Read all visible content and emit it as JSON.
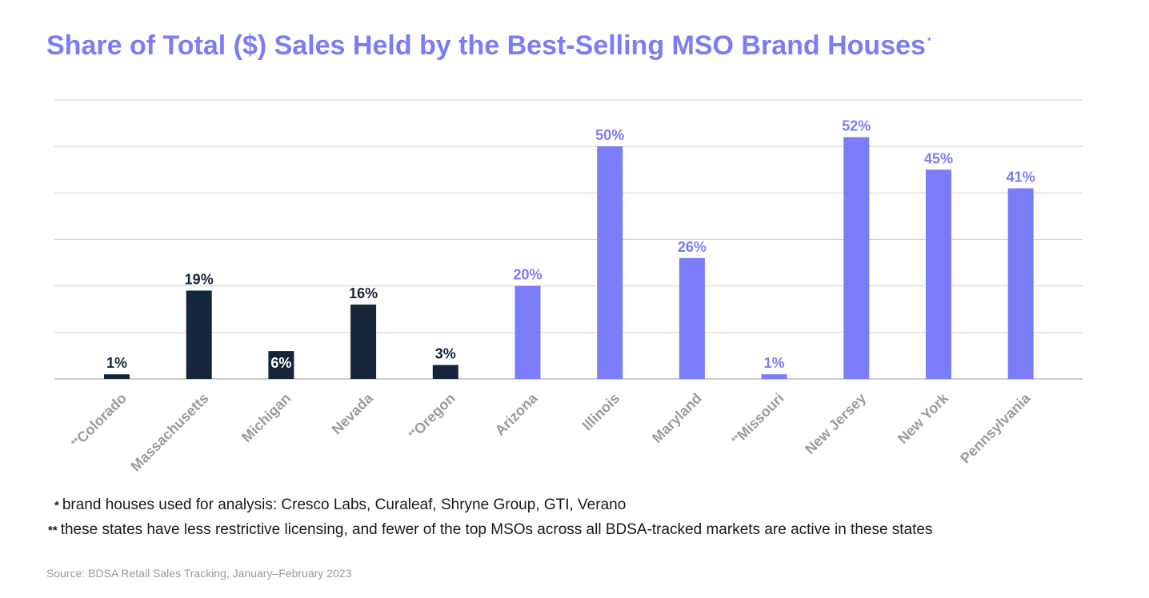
{
  "title": "Share of Total ($) Sales Held by the Best-Selling MSO Brand Houses",
  "title_mark": "*",
  "chart_data": {
    "type": "bar",
    "categories": [
      "Colorado",
      "Massachusetts",
      "Michigan",
      "Nevada",
      "Oregon",
      "Arizona",
      "Illinois",
      "Maryland",
      "Missouri",
      "New Jersey",
      "New York",
      "Pennsylvania"
    ],
    "category_prefixes": [
      "**",
      "",
      "",
      "",
      "**",
      "",
      "",
      "",
      "**",
      "",
      "",
      ""
    ],
    "values": [
      1,
      19,
      6,
      16,
      3,
      20,
      50,
      26,
      1,
      52,
      45,
      41
    ],
    "data_labels": [
      "1%",
      "19%",
      "6%",
      "16%",
      "3%",
      "20%",
      "50%",
      "26%",
      "1%",
      "52%",
      "45%",
      "41%"
    ],
    "bar_colors": [
      "#15253a",
      "#15253a",
      "#15253a",
      "#15253a",
      "#15253a",
      "#7b7cf8",
      "#7b7cf8",
      "#7b7cf8",
      "#7b7cf8",
      "#7b7cf8",
      "#7b7cf8",
      "#7b7cf8"
    ],
    "ylim": [
      0,
      60
    ],
    "grid": true,
    "gridline_step": 10,
    "xlabel": "",
    "ylabel": ""
  },
  "footnotes": [
    {
      "mark": "*",
      "text": "brand houses used for analysis: Cresco Labs, Curaleaf, Shryne Group, GTI, Verano"
    },
    {
      "mark": "**",
      "text": "these states have less restrictive licensing, and fewer of the top MSOs across all BDSA-tracked markets are active in these states"
    }
  ],
  "source": "Source: BDSA Retail Sales Tracking, January–February 2023",
  "colors": {
    "accent": "#7b7cf8",
    "dark": "#15253a",
    "grid": "#d0d0d0",
    "axis_label": "#9b9b9b"
  }
}
